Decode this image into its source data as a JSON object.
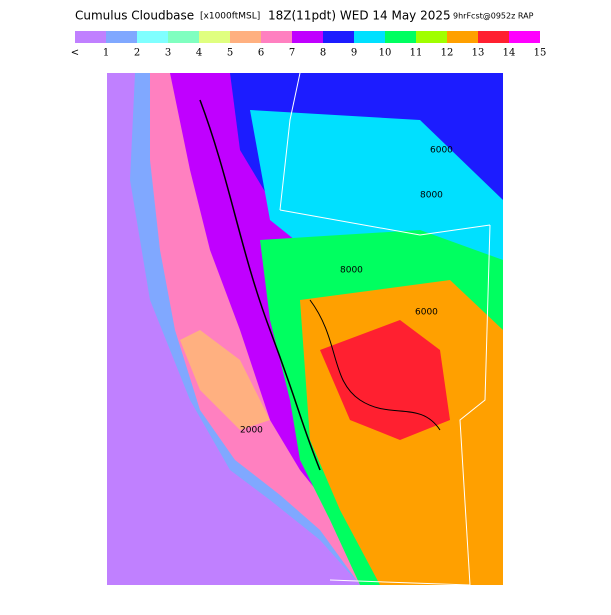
{
  "title": {
    "main": "Cumulus Cloudbase",
    "units": "[x1000ftMSL]",
    "valid": "18Z(11pdt) WED 14 May 2025",
    "forecast": "9hrFcst@0952z RAP"
  },
  "colorbar": {
    "labels": [
      "<",
      "1",
      "2",
      "3",
      "4",
      "5",
      "6",
      "7",
      "8",
      "9",
      "10",
      "11",
      "12",
      "13",
      "14",
      "15"
    ],
    "colors": [
      "#c080ff",
      "#80a8ff",
      "#80ffff",
      "#80ffc0",
      "#e0ff80",
      "#ffb080",
      "#ff80c0",
      "#c000ff",
      "#1c1cff",
      "#00e0ff",
      "#00ff60",
      "#a0ff00",
      "#ffa000",
      "#ff2030",
      "#ff00ff"
    ]
  },
  "contour_labels": [
    "6000",
    "8000",
    "8000",
    "6000",
    "2000"
  ]
}
